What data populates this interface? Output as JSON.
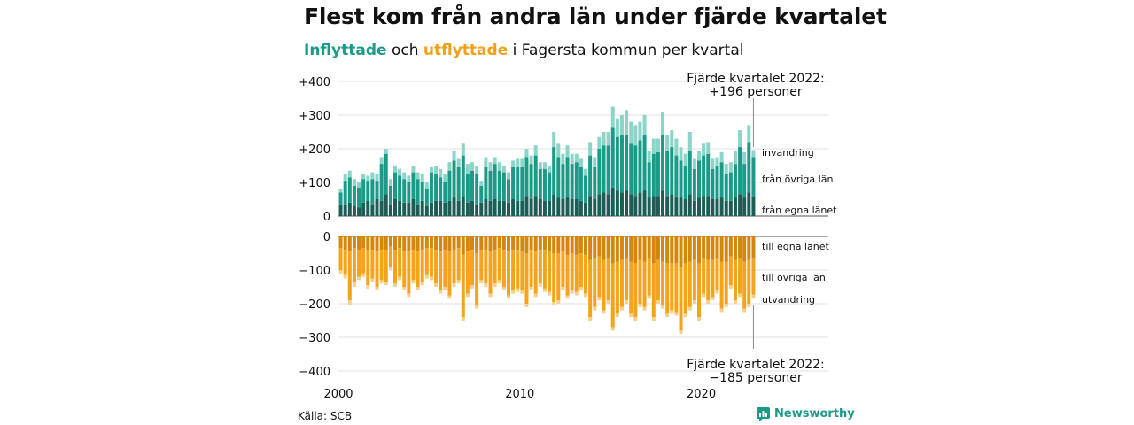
{
  "title": "Flest kom från andra län under fjärde kvartalet",
  "subtitle": {
    "inflow_word": "Inflyttade",
    "and_word": "och",
    "outflow_word": "utflyttade",
    "rest": "i Fagersta kommun per kvartal"
  },
  "source": "Källa: SCB",
  "brand": "Newsworthy",
  "colors": {
    "in_local": "#1c5e55",
    "in_other": "#1a9a87",
    "in_abroad": "#8ad4c8",
    "out_local": "#d4860f",
    "out_other": "#f5a21d",
    "out_abroad": "#f7cf8c",
    "title_in": "#1a9a87",
    "title_out": "#f2a019"
  },
  "annotations": {
    "in_line1": "Fjärde kvartalet 2022:",
    "in_line2": "+196 personer",
    "out_line1": "Fjärde kvartalet 2022:",
    "out_line2": "−185 personer"
  },
  "chart_data": {
    "type": "bar",
    "x_start": "2000 Q1",
    "x_end": "2022 Q4",
    "x_ticks": [
      "2000",
      "2010",
      "2020"
    ],
    "top_panel": {
      "y_ticks": [
        "+400",
        "+300",
        "+200",
        "+100",
        "0"
      ],
      "ylim": [
        0,
        400
      ],
      "series_labels": [
        "invandring",
        "från övriga län",
        "från egna länet"
      ]
    },
    "bottom_panel": {
      "y_ticks": [
        "0",
        "−100",
        "−200",
        "−300",
        "−400"
      ],
      "ylim": [
        -400,
        0
      ],
      "series_labels": [
        "till egna länet",
        "till övriga län",
        "utvandring"
      ]
    },
    "inflow": {
      "total": [
        80,
        125,
        135,
        110,
        100,
        125,
        120,
        130,
        125,
        175,
        200,
        110,
        150,
        140,
        130,
        120,
        150,
        130,
        125,
        100,
        145,
        150,
        140,
        125,
        160,
        195,
        170,
        215,
        155,
        160,
        150,
        105,
        175,
        160,
        175,
        160,
        150,
        130,
        165,
        170,
        170,
        200,
        180,
        210,
        160,
        160,
        150,
        250,
        215,
        185,
        210,
        185,
        185,
        170,
        140,
        220,
        175,
        235,
        250,
        250,
        325,
        290,
        300,
        315,
        280,
        270,
        280,
        300,
        195,
        230,
        230,
        310,
        240,
        255,
        230,
        205,
        185,
        250,
        170,
        195,
        215,
        220,
        170,
        175,
        190,
        155,
        160,
        195,
        255,
        190,
        270,
        196
      ],
      "local": [
        35,
        35,
        40,
        30,
        25,
        40,
        45,
        35,
        50,
        45,
        65,
        35,
        50,
        45,
        40,
        40,
        50,
        35,
        45,
        30,
        40,
        45,
        45,
        40,
        45,
        55,
        45,
        60,
        40,
        45,
        35,
        40,
        50,
        45,
        50,
        45,
        45,
        40,
        50,
        45,
        45,
        60,
        50,
        60,
        50,
        45,
        45,
        65,
        55,
        50,
        55,
        50,
        50,
        45,
        40,
        60,
        50,
        65,
        70,
        65,
        85,
        75,
        70,
        75,
        65,
        60,
        70,
        75,
        55,
        60,
        60,
        75,
        60,
        65,
        55,
        55,
        50,
        65,
        45,
        55,
        60,
        60,
        50,
        50,
        55,
        45,
        45,
        55,
        65,
        55,
        70,
        57
      ],
      "other": [
        35,
        70,
        75,
        60,
        60,
        70,
        60,
        75,
        55,
        110,
        120,
        55,
        80,
        75,
        70,
        60,
        80,
        75,
        55,
        50,
        90,
        80,
        70,
        60,
        90,
        110,
        100,
        120,
        85,
        90,
        90,
        50,
        95,
        90,
        105,
        90,
        85,
        70,
        95,
        100,
        100,
        115,
        105,
        120,
        90,
        95,
        85,
        140,
        120,
        105,
        120,
        105,
        110,
        100,
        80,
        120,
        95,
        135,
        140,
        145,
        180,
        160,
        170,
        165,
        150,
        150,
        155,
        165,
        105,
        125,
        130,
        165,
        135,
        140,
        125,
        110,
        100,
        130,
        95,
        110,
        120,
        125,
        90,
        100,
        105,
        80,
        85,
        100,
        140,
        100,
        150,
        118
      ],
      "abroad_color_note": "remainder of total"
    },
    "outflow": {
      "total": [
        -110,
        -125,
        -205,
        -150,
        -130,
        -120,
        -155,
        -135,
        -160,
        -140,
        -145,
        -100,
        -150,
        -130,
        -160,
        -180,
        -140,
        -160,
        -145,
        -125,
        -130,
        -150,
        -170,
        -160,
        -185,
        -150,
        -140,
        -250,
        -180,
        -155,
        -215,
        -140,
        -150,
        -180,
        -150,
        -140,
        -160,
        -185,
        -170,
        -165,
        -170,
        -210,
        -160,
        -180,
        -150,
        -165,
        -175,
        -205,
        -200,
        -160,
        -185,
        -170,
        -175,
        -160,
        -180,
        -250,
        -220,
        -190,
        -230,
        -200,
        -280,
        -240,
        -220,
        -200,
        -240,
        -250,
        -210,
        -220,
        -185,
        -250,
        -200,
        -215,
        -240,
        -230,
        -235,
        -290,
        -240,
        -220,
        -200,
        -250,
        -180,
        -200,
        -190,
        -170,
        -225,
        -210,
        -155,
        -200,
        -180,
        -225,
        -210,
        -185
      ],
      "local": [
        -35,
        -40,
        -45,
        -35,
        -40,
        -35,
        -40,
        -40,
        -45,
        -40,
        -40,
        -30,
        -40,
        -35,
        -45,
        -45,
        -40,
        -45,
        -40,
        -35,
        -35,
        -40,
        -45,
        -40,
        -45,
        -40,
        -35,
        -55,
        -45,
        -40,
        -50,
        -40,
        -40,
        -45,
        -40,
        -35,
        -40,
        -45,
        -40,
        -40,
        -45,
        -50,
        -40,
        -45,
        -40,
        -40,
        -45,
        -50,
        -50,
        -45,
        -55,
        -50,
        -55,
        -50,
        -55,
        -70,
        -65,
        -60,
        -70,
        -65,
        -80,
        -75,
        -70,
        -65,
        -75,
        -80,
        -70,
        -75,
        -65,
        -80,
        -70,
        -75,
        -80,
        -80,
        -80,
        -90,
        -80,
        -75,
        -70,
        -80,
        -65,
        -70,
        -70,
        -65,
        -75,
        -75,
        -60,
        -70,
        -65,
        -75,
        -70,
        -65
      ],
      "other": [
        -65,
        -75,
        -145,
        -100,
        -80,
        -75,
        -105,
        -85,
        -105,
        -90,
        -95,
        -60,
        -100,
        -85,
        -105,
        -125,
        -90,
        -105,
        -95,
        -80,
        -85,
        -100,
        -115,
        -110,
        -130,
        -100,
        -95,
        -185,
        -125,
        -105,
        -155,
        -90,
        -100,
        -125,
        -100,
        -95,
        -110,
        -130,
        -120,
        -115,
        -115,
        -150,
        -110,
        -125,
        -100,
        -115,
        -120,
        -145,
        -140,
        -105,
        -120,
        -110,
        -110,
        -100,
        -115,
        -170,
        -145,
        -120,
        -150,
        -125,
        -190,
        -155,
        -140,
        -125,
        -155,
        -160,
        -130,
        -135,
        -110,
        -160,
        -120,
        -130,
        -150,
        -140,
        -145,
        -190,
        -150,
        -135,
        -120,
        -160,
        -105,
        -120,
        -110,
        -95,
        -140,
        -125,
        -85,
        -120,
        -105,
        -140,
        -130,
        -108
      ]
    }
  }
}
